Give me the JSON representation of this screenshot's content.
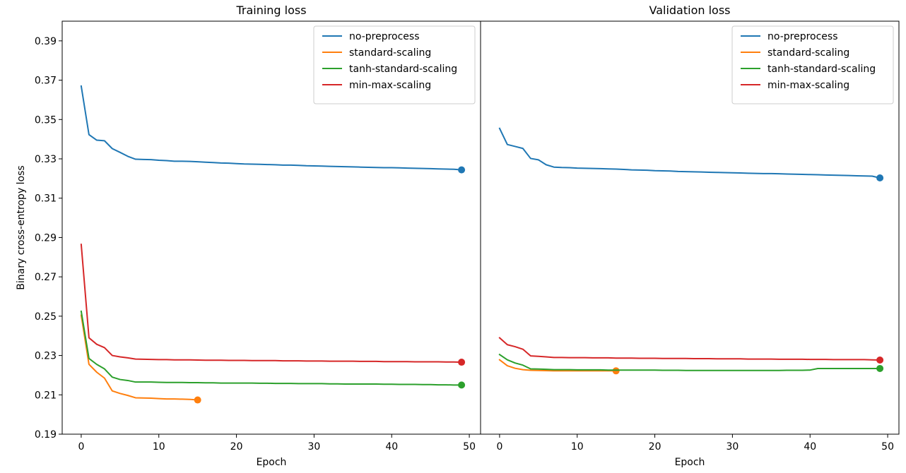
{
  "chart_data": [
    {
      "type": "line",
      "title": "Training loss",
      "xlabel": "Epoch",
      "ylabel": "Binary cross-entropy loss",
      "xlim": [
        -2.45,
        51.45
      ],
      "ylim": [
        0.19,
        0.4
      ],
      "xticks": [
        0,
        10,
        20,
        30,
        40,
        50
      ],
      "yticks": [
        0.19,
        0.21,
        0.23,
        0.25,
        0.27,
        0.29,
        0.31,
        0.33,
        0.35,
        0.37,
        0.39
      ],
      "ytick_labels": [
        "0.19",
        "0.21",
        "0.23",
        "0.25",
        "0.27",
        "0.29",
        "0.31",
        "0.33",
        "0.35",
        "0.37",
        "0.39"
      ],
      "grid": false,
      "legend": "top-right",
      "final_point_markers": true,
      "series": [
        {
          "name": "no-preprocess",
          "color": "#1f77b4",
          "x": [
            0,
            1,
            2,
            3,
            4,
            5,
            6,
            7,
            8,
            9,
            10,
            11,
            12,
            13,
            14,
            15,
            16,
            17,
            18,
            19,
            20,
            21,
            22,
            23,
            24,
            25,
            26,
            27,
            28,
            29,
            30,
            31,
            32,
            33,
            34,
            35,
            36,
            37,
            38,
            39,
            40,
            41,
            42,
            43,
            44,
            45,
            46,
            47,
            48,
            49
          ],
          "values": [
            0.367,
            0.3423,
            0.3395,
            0.3392,
            0.3352,
            0.3333,
            0.3313,
            0.3298,
            0.3297,
            0.3296,
            0.3293,
            0.3291,
            0.3288,
            0.3288,
            0.3287,
            0.3285,
            0.3283,
            0.3281,
            0.3279,
            0.3278,
            0.3276,
            0.3274,
            0.3273,
            0.3272,
            0.3271,
            0.327,
            0.3268,
            0.3268,
            0.3267,
            0.3265,
            0.3264,
            0.3263,
            0.3262,
            0.3261,
            0.326,
            0.3259,
            0.3258,
            0.3257,
            0.3256,
            0.3255,
            0.3255,
            0.3254,
            0.3253,
            0.3252,
            0.3251,
            0.325,
            0.3249,
            0.3248,
            0.3247,
            0.3244
          ]
        },
        {
          "name": "standard-scaling",
          "color": "#ff7f0e",
          "x": [
            0,
            1,
            2,
            3,
            4,
            5,
            6,
            7,
            8,
            9,
            10,
            11,
            12,
            13,
            14,
            15
          ],
          "values": [
            0.2505,
            0.2255,
            0.2215,
            0.2185,
            0.212,
            0.2107,
            0.2097,
            0.2085,
            0.2084,
            0.2083,
            0.2081,
            0.2079,
            0.2079,
            0.2078,
            0.2077,
            0.2074
          ]
        },
        {
          "name": "tanh-standard-scaling",
          "color": "#2ca02c",
          "x": [
            0,
            1,
            2,
            3,
            4,
            5,
            6,
            7,
            8,
            9,
            10,
            11,
            12,
            13,
            14,
            15,
            16,
            17,
            18,
            19,
            20,
            21,
            22,
            23,
            24,
            25,
            26,
            27,
            28,
            29,
            30,
            31,
            32,
            33,
            34,
            35,
            36,
            37,
            38,
            39,
            40,
            41,
            42,
            43,
            44,
            45,
            46,
            47,
            48,
            49
          ],
          "values": [
            0.2525,
            0.2285,
            0.2255,
            0.2232,
            0.219,
            0.2178,
            0.2173,
            0.2165,
            0.2165,
            0.2165,
            0.2164,
            0.2163,
            0.2163,
            0.2163,
            0.2162,
            0.2162,
            0.2161,
            0.2161,
            0.216,
            0.216,
            0.216,
            0.216,
            0.216,
            0.2159,
            0.2159,
            0.2158,
            0.2158,
            0.2158,
            0.2157,
            0.2157,
            0.2157,
            0.2157,
            0.2156,
            0.2156,
            0.2155,
            0.2155,
            0.2155,
            0.2155,
            0.2155,
            0.2154,
            0.2154,
            0.2153,
            0.2153,
            0.2153,
            0.2152,
            0.2152,
            0.2151,
            0.2151,
            0.215,
            0.215
          ]
        },
        {
          "name": "min-max-scaling",
          "color": "#d62728",
          "x": [
            0,
            1,
            2,
            3,
            4,
            5,
            6,
            7,
            8,
            9,
            10,
            11,
            12,
            13,
            14,
            15,
            16,
            17,
            18,
            19,
            20,
            21,
            22,
            23,
            24,
            25,
            26,
            27,
            28,
            29,
            30,
            31,
            32,
            33,
            34,
            35,
            36,
            37,
            38,
            39,
            40,
            41,
            42,
            43,
            44,
            45,
            46,
            47,
            48,
            49
          ],
          "values": [
            0.2865,
            0.239,
            0.2357,
            0.234,
            0.23,
            0.2293,
            0.2288,
            0.2282,
            0.2281,
            0.228,
            0.2279,
            0.2279,
            0.2278,
            0.2278,
            0.2278,
            0.2277,
            0.2276,
            0.2276,
            0.2276,
            0.2275,
            0.2275,
            0.2275,
            0.2274,
            0.2274,
            0.2274,
            0.2274,
            0.2273,
            0.2273,
            0.2273,
            0.2272,
            0.2272,
            0.2272,
            0.2271,
            0.2271,
            0.2271,
            0.2271,
            0.227,
            0.227,
            0.227,
            0.2269,
            0.2269,
            0.2269,
            0.2269,
            0.2268,
            0.2268,
            0.2268,
            0.2268,
            0.2267,
            0.2267,
            0.2266
          ]
        }
      ]
    },
    {
      "type": "line",
      "title": "Validation loss",
      "xlabel": "Epoch",
      "ylabel": "",
      "xlim": [
        -2.45,
        51.45
      ],
      "ylim": [
        0.19,
        0.4
      ],
      "xticks": [
        0,
        10,
        20,
        30,
        40,
        50
      ],
      "yticks": [],
      "ytick_labels": [],
      "grid": false,
      "legend": "top-right",
      "final_point_markers": true,
      "series": [
        {
          "name": "no-preprocess",
          "color": "#1f77b4",
          "x": [
            0,
            1,
            2,
            3,
            4,
            5,
            6,
            7,
            8,
            9,
            10,
            11,
            12,
            13,
            14,
            15,
            16,
            17,
            18,
            19,
            20,
            21,
            22,
            23,
            24,
            25,
            26,
            27,
            28,
            29,
            30,
            31,
            32,
            33,
            34,
            35,
            36,
            37,
            38,
            39,
            40,
            41,
            42,
            43,
            44,
            45,
            46,
            47,
            48,
            49
          ],
          "values": [
            0.3455,
            0.3373,
            0.3363,
            0.3353,
            0.3302,
            0.3295,
            0.327,
            0.3258,
            0.3256,
            0.3255,
            0.3253,
            0.3252,
            0.3251,
            0.325,
            0.3249,
            0.3248,
            0.3246,
            0.3244,
            0.3243,
            0.3242,
            0.324,
            0.3239,
            0.3238,
            0.3236,
            0.3235,
            0.3234,
            0.3233,
            0.3232,
            0.3231,
            0.323,
            0.3229,
            0.3228,
            0.3227,
            0.3226,
            0.3225,
            0.3225,
            0.3224,
            0.3223,
            0.3222,
            0.3221,
            0.322,
            0.3219,
            0.3218,
            0.3217,
            0.3216,
            0.3215,
            0.3214,
            0.3213,
            0.3212,
            0.3203
          ]
        },
        {
          "name": "standard-scaling",
          "color": "#ff7f0e",
          "x": [
            0,
            1,
            2,
            3,
            4,
            5,
            6,
            7,
            8,
            9,
            10,
            11,
            12,
            13,
            14,
            15
          ],
          "values": [
            0.2278,
            0.2248,
            0.2235,
            0.2228,
            0.2225,
            0.2224,
            0.2223,
            0.2222,
            0.2222,
            0.2222,
            0.2222,
            0.2222,
            0.2222,
            0.2222,
            0.2222,
            0.2222
          ]
        },
        {
          "name": "tanh-standard-scaling",
          "color": "#2ca02c",
          "x": [
            0,
            1,
            2,
            3,
            4,
            5,
            6,
            7,
            8,
            9,
            10,
            11,
            12,
            13,
            14,
            15,
            16,
            17,
            18,
            19,
            20,
            21,
            22,
            23,
            24,
            25,
            26,
            27,
            28,
            29,
            30,
            31,
            32,
            33,
            34,
            35,
            36,
            37,
            38,
            39,
            40,
            41,
            42,
            43,
            44,
            45,
            46,
            47,
            48,
            49
          ],
          "values": [
            0.2305,
            0.2278,
            0.2262,
            0.2251,
            0.2232,
            0.2231,
            0.223,
            0.2228,
            0.2228,
            0.2228,
            0.2227,
            0.2227,
            0.2227,
            0.2227,
            0.2226,
            0.2226,
            0.2226,
            0.2226,
            0.2226,
            0.2226,
            0.2226,
            0.2225,
            0.2225,
            0.2225,
            0.2224,
            0.2224,
            0.2224,
            0.2224,
            0.2224,
            0.2224,
            0.2224,
            0.2224,
            0.2224,
            0.2224,
            0.2224,
            0.2224,
            0.2224,
            0.2225,
            0.2225,
            0.2225,
            0.2226,
            0.2234,
            0.2234,
            0.2234,
            0.2234,
            0.2234,
            0.2234,
            0.2234,
            0.2234,
            0.2234
          ]
        },
        {
          "name": "min-max-scaling",
          "color": "#d62728",
          "x": [
            0,
            1,
            2,
            3,
            4,
            5,
            6,
            7,
            8,
            9,
            10,
            11,
            12,
            13,
            14,
            15,
            16,
            17,
            18,
            19,
            20,
            21,
            22,
            23,
            24,
            25,
            26,
            27,
            28,
            29,
            30,
            31,
            32,
            33,
            34,
            35,
            36,
            37,
            38,
            39,
            40,
            41,
            42,
            43,
            44,
            45,
            46,
            47,
            48,
            49
          ],
          "values": [
            0.239,
            0.2355,
            0.2345,
            0.2332,
            0.2298,
            0.2296,
            0.2293,
            0.229,
            0.229,
            0.2289,
            0.2289,
            0.2289,
            0.2288,
            0.2288,
            0.2288,
            0.2287,
            0.2287,
            0.2287,
            0.2286,
            0.2286,
            0.2286,
            0.2285,
            0.2285,
            0.2285,
            0.2285,
            0.2284,
            0.2284,
            0.2284,
            0.2283,
            0.2283,
            0.2283,
            0.2283,
            0.2282,
            0.2282,
            0.2282,
            0.2282,
            0.2281,
            0.2281,
            0.2281,
            0.2281,
            0.228,
            0.228,
            0.228,
            0.2279,
            0.2279,
            0.2279,
            0.2279,
            0.2279,
            0.2278,
            0.2277
          ]
        }
      ]
    }
  ]
}
